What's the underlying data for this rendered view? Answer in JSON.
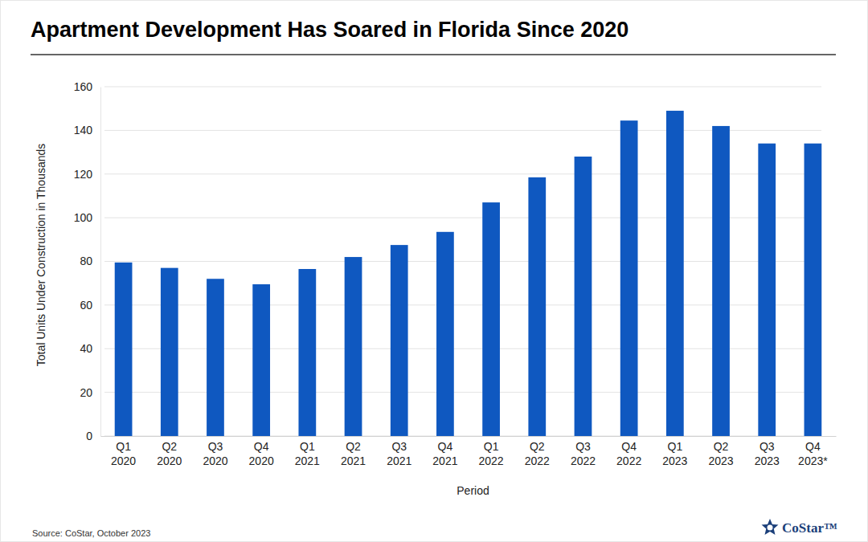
{
  "chart_data": {
    "type": "bar",
    "title": "Apartment Development Has Soared in Florida Since 2020",
    "y_label": "Total Units Under Construction in Thousands",
    "x_label": "Period",
    "source": "Source: CoStar, October 2023",
    "brand": "CoStar™",
    "categories": [
      "Q1 2020",
      "Q2 2020",
      "Q3 2020",
      "Q4 2020",
      "Q1 2021",
      "Q2 2021",
      "Q3 2021",
      "Q4 2021",
      "Q1 2022",
      "Q2 2022",
      "Q3 2022",
      "Q4 2022",
      "Q1 2023",
      "Q2 2023",
      "Q3 2023",
      "Q4 2023*"
    ],
    "values": [
      79.5,
      77,
      72,
      69.5,
      76.5,
      82,
      87.5,
      93.5,
      107,
      118.5,
      128,
      144.5,
      149,
      142,
      134,
      134
    ],
    "color": "#0f58c0",
    "ylim": [
      0,
      160
    ],
    "yticks": [
      0,
      20,
      40,
      60,
      80,
      100,
      120,
      140,
      160
    ],
    "grid": true
  }
}
